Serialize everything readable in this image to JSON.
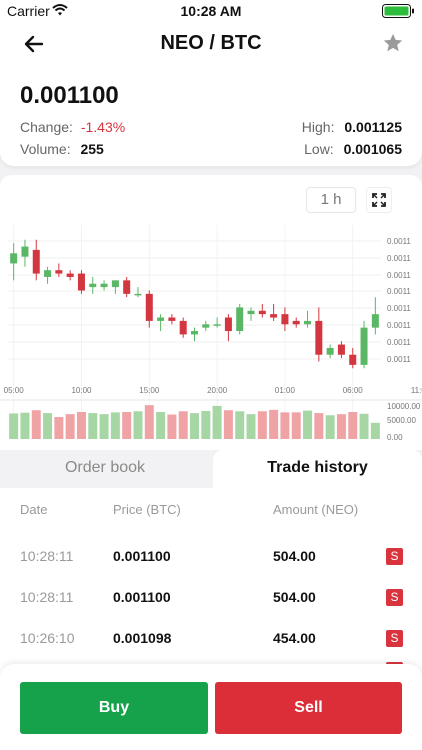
{
  "status_bar": {
    "carrier": "Carrier",
    "time": "10:28 AM"
  },
  "header": {
    "title": "NEO / BTC"
  },
  "ticker": {
    "last_price": "0.001100",
    "change_label": "Change:",
    "change_value": "-1.43%",
    "volume_label": "Volume:",
    "volume_value": "255",
    "high_label": "High:",
    "high_value": "0.001125",
    "low_label": "Low:",
    "low_value": "0.001065"
  },
  "chart_controls": {
    "timeframe": "1 h"
  },
  "chart_data": {
    "type": "candlestick",
    "x_tick_labels": [
      "05:00",
      "10:00",
      "15:00",
      "20:00",
      "01:00",
      "06:00",
      "11:00"
    ],
    "price_axis_labels": [
      "0.0011",
      "0.0011",
      "0.0011",
      "0.0011",
      "0.0011",
      "0.0011",
      "0.0011",
      "0.0011"
    ],
    "volume_axis_labels": [
      "10000.00",
      "5000.00",
      "0.00"
    ],
    "candles": [
      {
        "o": 0.001113,
        "h": 0.001119,
        "l": 0.001108,
        "c": 0.001116
      },
      {
        "o": 0.001115,
        "h": 0.00112,
        "l": 0.001112,
        "c": 0.001118
      },
      {
        "o": 0.001117,
        "h": 0.00112,
        "l": 0.001108,
        "c": 0.00111
      },
      {
        "o": 0.001109,
        "h": 0.001112,
        "l": 0.001107,
        "c": 0.001111
      },
      {
        "o": 0.001111,
        "h": 0.001113,
        "l": 0.001109,
        "c": 0.00111
      },
      {
        "o": 0.00111,
        "h": 0.001111,
        "l": 0.001108,
        "c": 0.001109
      },
      {
        "o": 0.00111,
        "h": 0.001111,
        "l": 0.001104,
        "c": 0.001105
      },
      {
        "o": 0.001106,
        "h": 0.001109,
        "l": 0.001104,
        "c": 0.001107
      },
      {
        "o": 0.001106,
        "h": 0.001108,
        "l": 0.001105,
        "c": 0.001107
      },
      {
        "o": 0.001106,
        "h": 0.001108,
        "l": 0.001104,
        "c": 0.001108
      },
      {
        "o": 0.001108,
        "h": 0.001109,
        "l": 0.001103,
        "c": 0.001104
      },
      {
        "o": 0.001104,
        "h": 0.001106,
        "l": 0.001103,
        "c": 0.001104
      },
      {
        "o": 0.001104,
        "h": 0.001105,
        "l": 0.001094,
        "c": 0.001096
      },
      {
        "o": 0.001096,
        "h": 0.001098,
        "l": 0.001093,
        "c": 0.001097
      },
      {
        "o": 0.001097,
        "h": 0.001098,
        "l": 0.001095,
        "c": 0.001096
      },
      {
        "o": 0.001096,
        "h": 0.001097,
        "l": 0.001091,
        "c": 0.001092
      },
      {
        "o": 0.001092,
        "h": 0.001094,
        "l": 0.00109,
        "c": 0.001093
      },
      {
        "o": 0.001094,
        "h": 0.001096,
        "l": 0.001093,
        "c": 0.001095
      },
      {
        "o": 0.001095,
        "h": 0.001097,
        "l": 0.001094,
        "c": 0.001095
      },
      {
        "o": 0.001097,
        "h": 0.001098,
        "l": 0.00109,
        "c": 0.001093
      },
      {
        "o": 0.001093,
        "h": 0.001101,
        "l": 0.001092,
        "c": 0.0011
      },
      {
        "o": 0.001098,
        "h": 0.0011,
        "l": 0.001096,
        "c": 0.001099
      },
      {
        "o": 0.001099,
        "h": 0.001101,
        "l": 0.001097,
        "c": 0.001098
      },
      {
        "o": 0.001098,
        "h": 0.001101,
        "l": 0.001096,
        "c": 0.001097
      },
      {
        "o": 0.001098,
        "h": 0.0011,
        "l": 0.001093,
        "c": 0.001095
      },
      {
        "o": 0.001096,
        "h": 0.001097,
        "l": 0.001094,
        "c": 0.001095
      },
      {
        "o": 0.001095,
        "h": 0.001099,
        "l": 0.001094,
        "c": 0.001096
      },
      {
        "o": 0.001096,
        "h": 0.0011,
        "l": 0.001084,
        "c": 0.001086
      },
      {
        "o": 0.001086,
        "h": 0.001089,
        "l": 0.001085,
        "c": 0.001088
      },
      {
        "o": 0.001089,
        "h": 0.00109,
        "l": 0.001085,
        "c": 0.001086
      },
      {
        "o": 0.001086,
        "h": 0.001088,
        "l": 0.001082,
        "c": 0.001083
      },
      {
        "o": 0.001083,
        "h": 0.001096,
        "l": 0.001082,
        "c": 0.001094
      },
      {
        "o": 0.001094,
        "h": 0.001103,
        "l": 0.001092,
        "c": 0.001098
      }
    ],
    "volumes": [
      7100,
      7300,
      8000,
      7200,
      6100,
      6900,
      7500,
      7200,
      6900,
      7400,
      7500,
      7700,
      9400,
      7500,
      6800,
      7700,
      7200,
      7800,
      9200,
      8000,
      7700,
      6900,
      7700,
      8100,
      7400,
      7400,
      7900,
      7200,
      6600,
      6900,
      7500,
      7000,
      4500
    ],
    "volume_max": 10000,
    "grid": true
  },
  "tabs": {
    "order_book": "Order book",
    "trade_history": "Trade history"
  },
  "trade_history": {
    "columns": {
      "date": "Date",
      "price": "Price (BTC)",
      "amount": "Amount (NEO)"
    },
    "rows": [
      {
        "date": "10:28:11",
        "price": "0.001100",
        "amount": "504.00",
        "side": "S"
      },
      {
        "date": "10:28:11",
        "price": "0.001100",
        "amount": "504.00",
        "side": "S"
      },
      {
        "date": "10:26:10",
        "price": "0.001098",
        "amount": "454.00",
        "side": "S"
      }
    ]
  },
  "actions": {
    "buy": "Buy",
    "sell": "Sell"
  },
  "colors": {
    "up": "#5ab765",
    "down": "#d4363f",
    "up_volume": "#a7d6a5",
    "down_volume": "#f0a3a5",
    "buy": "#16a24b",
    "sell": "#dc2e38"
  }
}
